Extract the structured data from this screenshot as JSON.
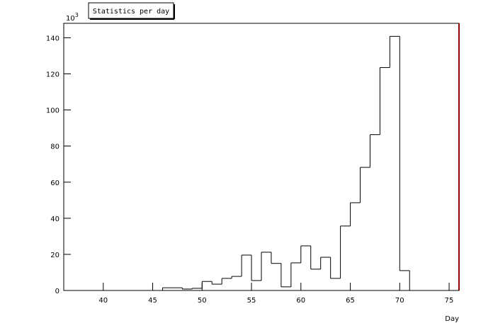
{
  "chart_data": {
    "type": "histogram",
    "title": "Statistics per day",
    "xlabel": "Day",
    "y_multiplier": {
      "base": "10",
      "exponent": "3"
    },
    "bins": [
      36,
      37,
      38,
      39,
      40,
      41,
      42,
      43,
      44,
      45,
      46,
      47,
      48,
      49,
      50,
      51,
      52,
      53,
      54,
      55,
      56,
      57,
      58,
      59,
      60,
      61,
      62,
      63,
      64,
      65,
      66,
      67,
      68,
      69,
      70,
      71,
      72,
      73,
      74,
      75,
      76
    ],
    "values": [
      0,
      0,
      0,
      0,
      0,
      0,
      0,
      0,
      0,
      0,
      1.5,
      1.5,
      0.8,
      1.2,
      5,
      3.5,
      6.7,
      7.8,
      19.6,
      5.5,
      21.2,
      15,
      2,
      15.3,
      24.7,
      11.8,
      18.4,
      6.7,
      35.7,
      48.6,
      68.2,
      86.3,
      123.5,
      140.8,
      11,
      0,
      0,
      0,
      0,
      0
    ],
    "color": "#000000",
    "frame_right_color": "#8b0000",
    "xlim": [
      36,
      76
    ],
    "ylim": [
      0,
      148
    ],
    "xticks": [
      40,
      45,
      50,
      55,
      60,
      65,
      70,
      75
    ],
    "yticks": [
      0,
      20,
      40,
      60,
      80,
      100,
      120,
      140
    ]
  }
}
